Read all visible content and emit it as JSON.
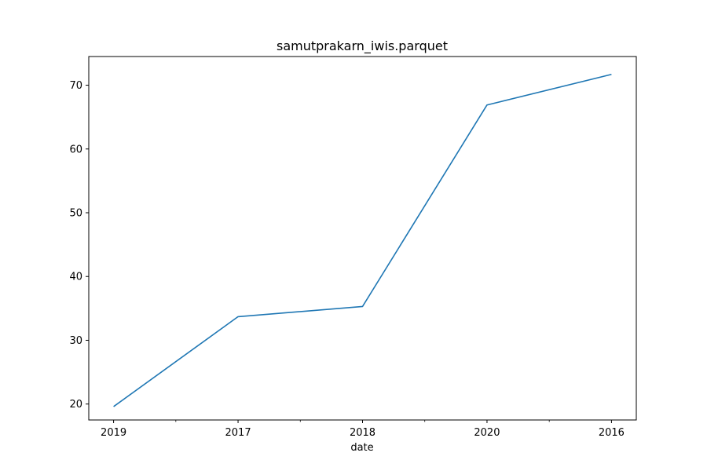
{
  "chart_data": {
    "type": "line",
    "title": "samutprakarn_iwis.parquet",
    "xlabel": "date",
    "ylabel": "",
    "categories": [
      "2019",
      "2017",
      "2018",
      "2020",
      "2016"
    ],
    "series": [
      {
        "values": [
          19.6,
          33.7,
          35.3,
          66.9,
          71.7
        ],
        "color": "#1f77b4"
      }
    ],
    "ylim": [
      17.5,
      74.5
    ],
    "yticks": [
      20,
      30,
      40,
      50,
      60,
      70
    ],
    "grid": false,
    "legend": "none"
  }
}
